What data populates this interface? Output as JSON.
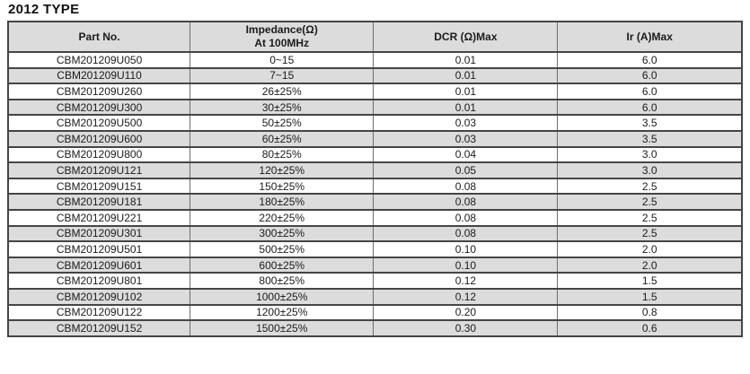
{
  "title": "2012 TYPE",
  "colors": {
    "header_bg": "#dcdcdc",
    "row_alt_bg": "#dcdcdc",
    "row_bg": "#ffffff",
    "border_dark": "#454545",
    "border_light": "#6e6e6e",
    "text": "#1b1b1b"
  },
  "table": {
    "columns": [
      {
        "label": "Part No.",
        "sublabel": ""
      },
      {
        "label": "Impedance(Ω)",
        "sublabel": "At 100MHz"
      },
      {
        "label": "DCR (Ω)Max",
        "sublabel": ""
      },
      {
        "label": "Ir (A)Max",
        "sublabel": ""
      }
    ],
    "row_keys": [
      "part_no",
      "impedance",
      "dcr_max",
      "ir_max"
    ],
    "rows": [
      {
        "part_no": "CBM201209U050",
        "impedance": "0~15",
        "dcr_max": "0.01",
        "ir_max": "6.0"
      },
      {
        "part_no": "CBM201209U110",
        "impedance": "7~15",
        "dcr_max": "0.01",
        "ir_max": "6.0"
      },
      {
        "part_no": "CBM201209U260",
        "impedance": "26±25%",
        "dcr_max": "0.01",
        "ir_max": "6.0"
      },
      {
        "part_no": "CBM201209U300",
        "impedance": "30±25%",
        "dcr_max": "0.01",
        "ir_max": "6.0"
      },
      {
        "part_no": "CBM201209U500",
        "impedance": "50±25%",
        "dcr_max": "0.03",
        "ir_max": "3.5"
      },
      {
        "part_no": "CBM201209U600",
        "impedance": "60±25%",
        "dcr_max": "0.03",
        "ir_max": "3.5"
      },
      {
        "part_no": "CBM201209U800",
        "impedance": "80±25%",
        "dcr_max": "0.04",
        "ir_max": "3.0"
      },
      {
        "part_no": "CBM201209U121",
        "impedance": "120±25%",
        "dcr_max": "0.05",
        "ir_max": "3.0"
      },
      {
        "part_no": "CBM201209U151",
        "impedance": "150±25%",
        "dcr_max": "0.08",
        "ir_max": "2.5"
      },
      {
        "part_no": "CBM201209U181",
        "impedance": "180±25%",
        "dcr_max": "0.08",
        "ir_max": "2.5"
      },
      {
        "part_no": "CBM201209U221",
        "impedance": "220±25%",
        "dcr_max": "0.08",
        "ir_max": "2.5"
      },
      {
        "part_no": "CBM201209U301",
        "impedance": "300±25%",
        "dcr_max": "0.08",
        "ir_max": "2.5"
      },
      {
        "part_no": "CBM201209U501",
        "impedance": "500±25%",
        "dcr_max": "0.10",
        "ir_max": "2.0"
      },
      {
        "part_no": "CBM201209U601",
        "impedance": "600±25%",
        "dcr_max": "0.10",
        "ir_max": "2.0"
      },
      {
        "part_no": "CBM201209U801",
        "impedance": "800±25%",
        "dcr_max": "0.12",
        "ir_max": "1.5"
      },
      {
        "part_no": "CBM201209U102",
        "impedance": "1000±25%",
        "dcr_max": "0.12",
        "ir_max": "1.5"
      },
      {
        "part_no": "CBM201209U122",
        "impedance": "1200±25%",
        "dcr_max": "0.20",
        "ir_max": "0.8"
      },
      {
        "part_no": "CBM201209U152",
        "impedance": "1500±25%",
        "dcr_max": "0.30",
        "ir_max": "0.6"
      }
    ]
  }
}
